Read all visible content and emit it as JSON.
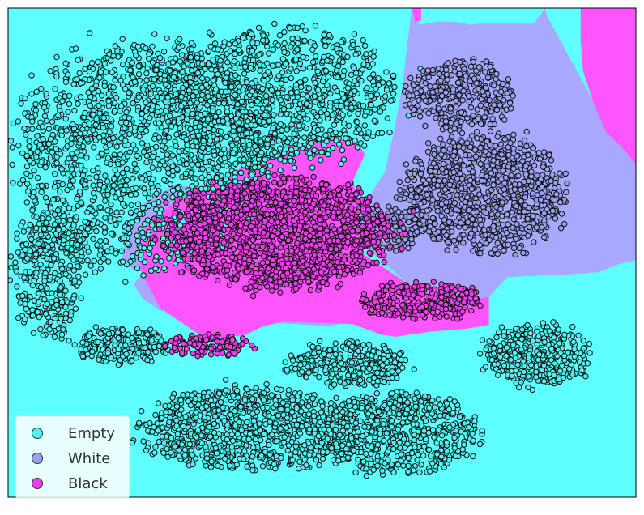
{
  "chart_data": {
    "type": "scatter",
    "title": "",
    "xlabel": "",
    "ylabel": "",
    "xlim": [
      0,
      100
    ],
    "ylim": [
      0,
      100
    ],
    "grid": false,
    "axes_ticks": false,
    "legend": {
      "placement": "bottom-left",
      "entries": [
        {
          "label": "Empty",
          "color": "#4ef2f2"
        },
        {
          "label": "White",
          "color": "#9a9ff0"
        },
        {
          "label": "Black",
          "color": "#f03cf0"
        }
      ]
    },
    "decision_regions": [
      {
        "class": "Empty",
        "color": "#5fffff",
        "polygon": "background"
      },
      {
        "class": "White",
        "color": "#a8a8ff",
        "polygon": [
          [
            64.3,
            100
          ],
          [
            64.7,
            97.2
          ],
          [
            65.8,
            96.6
          ],
          [
            68.2,
            97.2
          ],
          [
            71.2,
            97.2
          ],
          [
            73.6,
            96.6
          ],
          [
            75.1,
            96.8
          ],
          [
            83.8,
            96.8
          ],
          [
            85.5,
            100
          ],
          [
            85.8,
            98.5
          ],
          [
            91.7,
            84.5
          ],
          [
            92.8,
            82
          ],
          [
            94.5,
            78.5
          ],
          [
            97.8,
            75.5
          ],
          [
            100,
            74
          ],
          [
            100,
            48.5
          ],
          [
            97.2,
            47.6
          ],
          [
            94,
            46
          ],
          [
            89.5,
            45.6
          ],
          [
            79.5,
            45
          ],
          [
            76.6,
            41
          ],
          [
            70.5,
            39.3
          ],
          [
            63.9,
            43.5
          ],
          [
            55.6,
            52.6
          ],
          [
            45,
            58.5
          ],
          [
            36,
            62.8
          ],
          [
            26.5,
            63.8
          ],
          [
            21.6,
            60
          ],
          [
            18.8,
            53.6
          ],
          [
            18,
            47.6
          ],
          [
            21.4,
            46
          ],
          [
            20,
            43.5
          ],
          [
            21.5,
            40.5
          ],
          [
            24.5,
            38
          ],
          [
            26,
            40
          ],
          [
            30,
            39.5
          ],
          [
            40.4,
            35.8
          ],
          [
            51.5,
            35
          ],
          [
            58,
            37.5
          ],
          [
            58,
            40
          ],
          [
            57,
            48.5
          ],
          [
            55.5,
            55.5
          ],
          [
            57,
            60.5
          ],
          [
            60,
            66.5
          ],
          [
            61.5,
            75
          ],
          [
            62.8,
            84
          ],
          [
            64.3,
            100
          ]
        ]
      },
      {
        "class": "Black",
        "color": "#ff55ff",
        "polygon": [
          [
            21.4,
            45.5
          ],
          [
            24.3,
            38.6
          ],
          [
            30.2,
            33.5
          ],
          [
            32.5,
            32.3
          ],
          [
            37.8,
            33.2
          ],
          [
            40.7,
            35
          ],
          [
            43.8,
            35.9
          ],
          [
            54.9,
            35.4
          ],
          [
            59.5,
            33.2
          ],
          [
            61.8,
            32.8
          ],
          [
            67.6,
            33.9
          ],
          [
            72.7,
            34.4
          ],
          [
            76.6,
            35.2
          ],
          [
            76.6,
            41
          ],
          [
            70.5,
            39.3
          ],
          [
            63.9,
            43.5
          ],
          [
            56.7,
            49.6
          ],
          [
            55.5,
            60
          ],
          [
            55,
            65
          ],
          [
            56.8,
            70
          ],
          [
            55.4,
            73.5
          ],
          [
            45.6,
            72.3
          ],
          [
            38.5,
            68.5
          ],
          [
            35.5,
            66.1
          ],
          [
            27.5,
            60.9
          ],
          [
            23.2,
            57.5
          ],
          [
            20.5,
            52
          ],
          [
            21.4,
            45.5
          ]
        ]
      },
      {
        "class": "Black",
        "color": "#ff55ff",
        "polygon": [
          [
            91.2,
            100
          ],
          [
            100,
            100
          ],
          [
            100,
            68
          ],
          [
            97.8,
            71.5
          ],
          [
            95.3,
            74.5
          ],
          [
            93.3,
            80.5
          ],
          [
            91.6,
            87
          ],
          [
            91.2,
            93.4
          ],
          [
            91.2,
            100
          ]
        ]
      },
      {
        "class": "Black",
        "color": "#ff55ff",
        "polygon": [
          [
            64.3,
            100
          ],
          [
            65.8,
            100
          ],
          [
            65.8,
            97.5
          ],
          [
            64.8,
            97
          ],
          [
            64.3,
            100
          ]
        ]
      }
    ],
    "series": [
      {
        "name": "Empty",
        "color": "#4ef2f2",
        "clusters": [
          {
            "cx": 22,
            "cy": 70,
            "rx": 22,
            "ry": 25,
            "n": 1600
          },
          {
            "cx": 43,
            "cy": 82,
            "rx": 20,
            "ry": 15,
            "n": 1000
          },
          {
            "cx": 6.5,
            "cy": 46,
            "rx": 6,
            "ry": 14,
            "n": 350
          },
          {
            "cx": 18,
            "cy": 31,
            "rx": 8,
            "ry": 4,
            "n": 220
          },
          {
            "cx": 38,
            "cy": 14,
            "rx": 18,
            "ry": 9,
            "n": 900
          },
          {
            "cx": 62,
            "cy": 13,
            "rx": 14,
            "ry": 9,
            "n": 650
          },
          {
            "cx": 84,
            "cy": 29,
            "rx": 9,
            "ry": 7,
            "n": 380
          },
          {
            "cx": 54,
            "cy": 27,
            "rx": 10,
            "ry": 5,
            "n": 300
          }
        ]
      },
      {
        "name": "White",
        "color": "#9a9ff0",
        "clusters": [
          {
            "cx": 76,
            "cy": 62,
            "rx": 14,
            "ry": 13,
            "n": 950
          },
          {
            "cx": 72,
            "cy": 82,
            "rx": 9,
            "ry": 8,
            "n": 320
          },
          {
            "cx": 61,
            "cy": 55,
            "rx": 6,
            "ry": 5,
            "n": 150
          }
        ]
      },
      {
        "name": "Black",
        "color": "#f03cf0",
        "clusters": [
          {
            "cx": 43,
            "cy": 54,
            "rx": 19,
            "ry": 12,
            "n": 1500
          },
          {
            "cx": 66,
            "cy": 40,
            "rx": 10,
            "ry": 4,
            "n": 280
          },
          {
            "cx": 32,
            "cy": 31,
            "rx": 8,
            "ry": 2.5,
            "n": 120
          }
        ]
      }
    ]
  }
}
